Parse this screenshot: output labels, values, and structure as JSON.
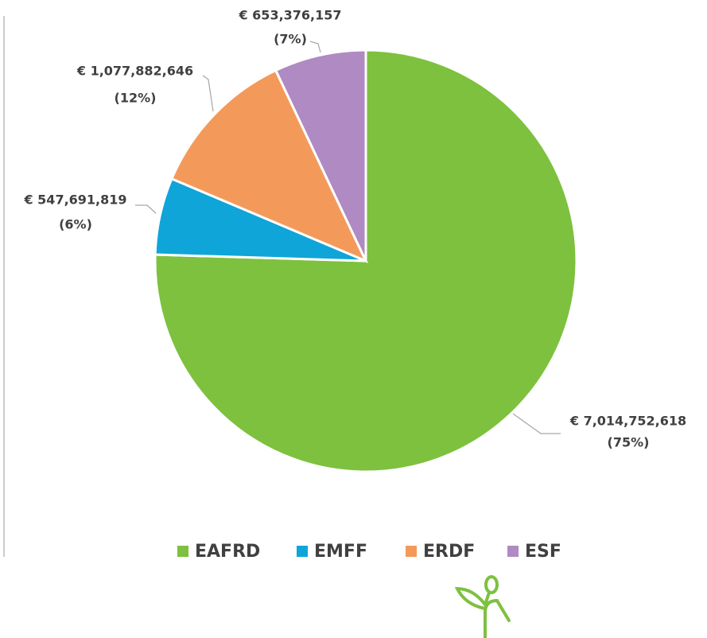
{
  "chart_data": {
    "type": "pie",
    "categories": [
      "EAFRD",
      "EMFF",
      "ERDF",
      "ESF"
    ],
    "values": [
      7014752618,
      547691819,
      1077882646,
      653376157
    ],
    "value_labels": [
      "€ 7,014,752,618",
      "€ 547,691,819",
      "€ 1,077,882,646",
      "€ 653,376,157"
    ],
    "percent_labels": [
      "(75%)",
      "(6%)",
      "(12%)",
      "(7%)"
    ],
    "colors": [
      "#7dc13f",
      "#0fa5d9",
      "#f39a5b",
      "#b08ac2"
    ],
    "legend": "bottom"
  }
}
